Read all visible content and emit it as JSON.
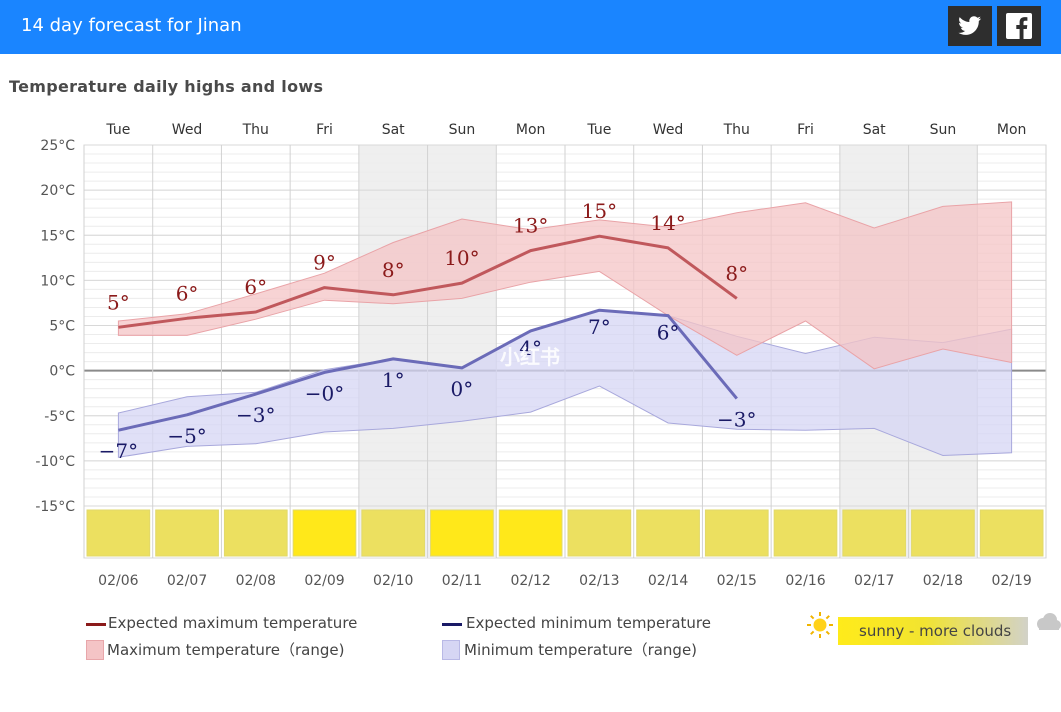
{
  "header": {
    "title": "14 day forecast for Jinan",
    "twitter_icon": "twitter-icon",
    "facebook_icon": "facebook-icon"
  },
  "chart_title": "Temperature daily highs and lows",
  "colors": {
    "header_bg": "#1a85ff",
    "max_line": "#c0585c",
    "max_label": "#8b1a1a",
    "max_range": "#f4c4c6",
    "min_line": "#6b6bb8",
    "min_label": "#1a1a66",
    "min_range": "#d6d6f4",
    "sunny": "#ffe81a",
    "sunny_clouds": "#ece060"
  },
  "chart_data": {
    "type": "line",
    "title": "Temperature daily highs and lows",
    "xlabel": "",
    "ylabel": "",
    "ylim": [
      -15,
      25
    ],
    "y_ticks": [
      "25°C",
      "20°C",
      "15°C",
      "10°C",
      "5°C",
      "0°C",
      "-5°C",
      "-10°C",
      "-15°C"
    ],
    "y_tick_values": [
      25,
      20,
      15,
      10,
      5,
      0,
      -5,
      -10,
      -15
    ],
    "days": [
      "Tue",
      "Wed",
      "Thu",
      "Fri",
      "Sat",
      "Sun",
      "Mon",
      "Tue",
      "Wed",
      "Thu",
      "Fri",
      "Sat",
      "Sun",
      "Mon"
    ],
    "dates": [
      "02/06",
      "02/07",
      "02/08",
      "02/09",
      "02/10",
      "02/11",
      "02/12",
      "02/13",
      "02/14",
      "02/15",
      "02/16",
      "02/17",
      "02/18",
      "02/19"
    ],
    "weekend": [
      false,
      false,
      false,
      false,
      true,
      true,
      false,
      false,
      false,
      false,
      false,
      true,
      true,
      false
    ],
    "series": [
      {
        "name": "Expected maximum temperature",
        "values": [
          4.8,
          5.8,
          6.5,
          9.2,
          8.4,
          9.7,
          13.3,
          14.9,
          13.6,
          8.0,
          null,
          null,
          null,
          null
        ],
        "labels": [
          "5°",
          "6°",
          "6°",
          "9°",
          "8°",
          "10°",
          "13°",
          "15°",
          "14°",
          "8°",
          "",
          "",
          "",
          ""
        ]
      },
      {
        "name": "Expected minimum temperature",
        "values": [
          -6.6,
          -4.9,
          -2.6,
          -0.2,
          1.3,
          0.3,
          4.4,
          6.7,
          6.1,
          -3.1,
          null,
          null,
          null,
          null
        ],
        "labels": [
          "−7°",
          "−5°",
          "−3°",
          "−0°",
          "1°",
          "0°",
          "4°",
          "7°",
          "6°",
          "−3°",
          "",
          "",
          "",
          ""
        ]
      },
      {
        "name": "Maximum temperature (range)",
        "upper": [
          5.5,
          6.3,
          8.5,
          10.8,
          14.2,
          16.8,
          15.6,
          16.7,
          15.9,
          17.5,
          18.6,
          15.8,
          18.2,
          18.7
        ],
        "lower": [
          3.9,
          3.9,
          5.7,
          7.8,
          7.4,
          8.0,
          9.8,
          11.0,
          6.1,
          1.7,
          5.5,
          0.2,
          2.4,
          0.9
        ]
      },
      {
        "name": "Minimum temperature (range)",
        "upper": [
          -4.7,
          -2.9,
          -2.4,
          0.1,
          1.3,
          0.3,
          4.4,
          6.7,
          6.1,
          3.8,
          1.9,
          3.7,
          3.1,
          4.6
        ],
        "lower": [
          -9.6,
          -8.4,
          -8.1,
          -6.8,
          -6.4,
          -5.6,
          -4.6,
          -1.7,
          -5.8,
          -6.5,
          -6.6,
          -6.4,
          -9.4,
          -9.1
        ]
      }
    ],
    "weather": [
      "sunny - more clouds",
      "sunny - more clouds",
      "sunny - more clouds",
      "sunny",
      "sunny - more clouds",
      "sunny",
      "sunny",
      "sunny - more clouds",
      "sunny - more clouds",
      "sunny - more clouds",
      "sunny - more clouds",
      "sunny - more clouds",
      "sunny - more clouds",
      "sunny - more clouds"
    ],
    "watermark": "小红书"
  },
  "legend": {
    "max_expected": "Expected maximum temperature",
    "max_range": "Maximum temperature（range)",
    "min_expected": "Expected minimum temperature",
    "min_range": "Minimum temperature（range)",
    "weather_label": "sunny - more clouds",
    "sun_icon": "sun-icon",
    "cloud_icon": "cloud-icon"
  }
}
